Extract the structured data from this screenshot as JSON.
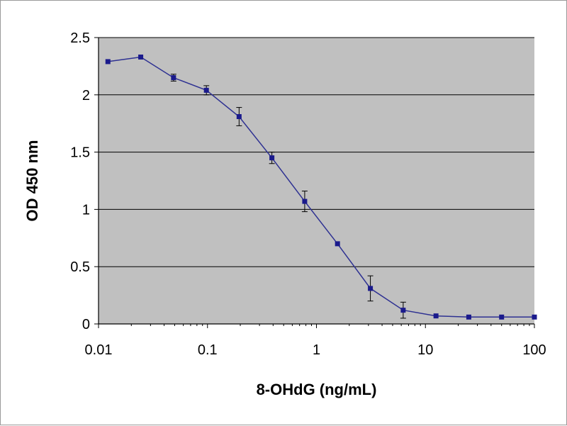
{
  "chart_data": {
    "type": "line",
    "title": "",
    "xlabel": "8-OHdG (ng/mL)",
    "ylabel": "OD 450 nm",
    "xscale": "log",
    "xlim": [
      0.01,
      100
    ],
    "ylim": [
      0,
      2.5
    ],
    "xticks": [
      "0.01",
      "0.1",
      "1",
      "10",
      "100"
    ],
    "xtick_values": [
      0.01,
      0.1,
      1,
      10,
      100
    ],
    "yticks": [
      "0",
      "0.5",
      "1",
      "1.5",
      "2",
      "2.5"
    ],
    "ytick_values": [
      0,
      0.5,
      1,
      1.5,
      2,
      2.5
    ],
    "grid": "horizontal",
    "legend": "none",
    "series": [
      {
        "x": [
          0.0122,
          0.0244,
          0.0488,
          0.0977,
          0.195,
          0.39,
          0.78,
          1.56,
          3.125,
          6.25,
          12.5,
          25,
          50,
          100
        ],
        "y": [
          2.29,
          2.33,
          2.15,
          2.04,
          1.81,
          1.45,
          1.07,
          0.7,
          0.31,
          0.12,
          0.07,
          0.06,
          0.06,
          0.06
        ],
        "error": [
          0,
          0,
          0.03,
          0.04,
          0.08,
          0.05,
          0.09,
          0,
          0.11,
          0.07,
          0,
          0,
          0,
          0
        ]
      }
    ],
    "colors": {
      "plot_background": "#c0c0c0",
      "gridline": "#000000",
      "line": "#2e3192",
      "marker": "#1a1a8c",
      "error_bar": "#000000"
    }
  }
}
